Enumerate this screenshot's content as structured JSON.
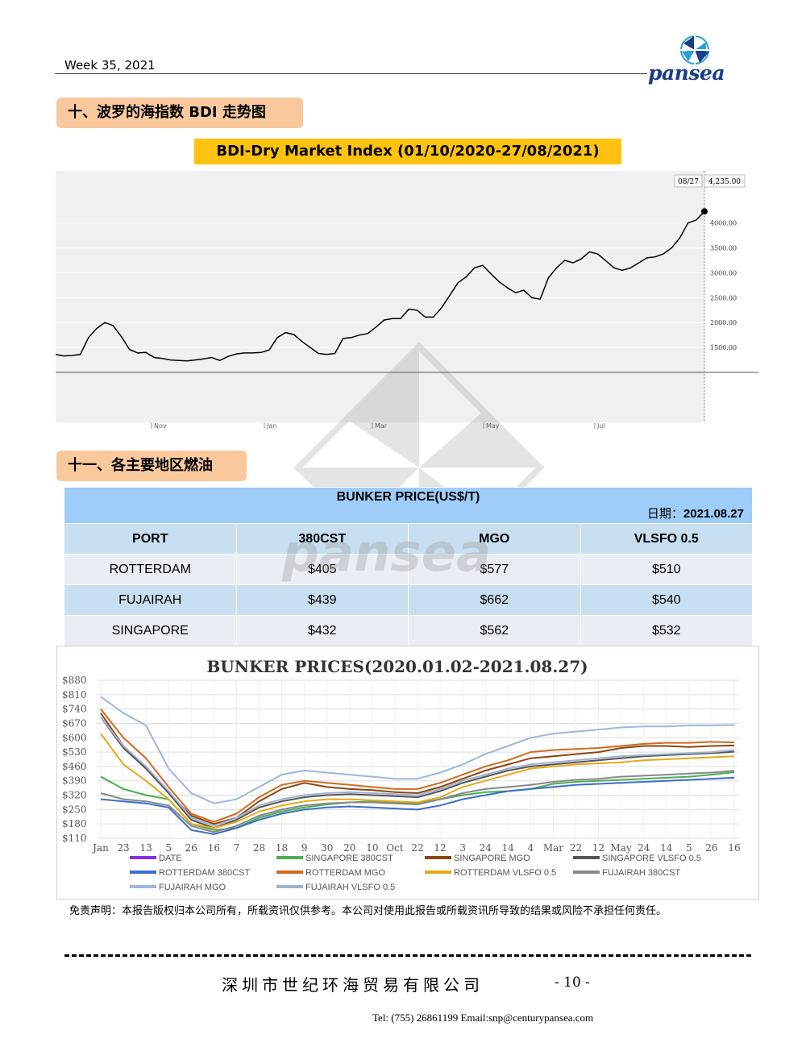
{
  "header": {
    "week": "Week 35, 2021",
    "logo_text": "pansea",
    "logo_colors": {
      "primary": "#1b3e8a",
      "accent": "#2a9fd8"
    }
  },
  "section10": {
    "title": "十、波罗的海指数 BDI 走势图",
    "chart_title": "BDI-Dry Market Index (01/10/2020-27/08/2021)"
  },
  "bdi_chart": {
    "type": "line",
    "tooltip_date": "08/27",
    "tooltip_value": "4,235.00",
    "yticks": [
      "4000.00",
      "3500.00",
      "3000.00",
      "2500.00",
      "2000.00",
      "1500.00"
    ],
    "xticks": [
      "Nov",
      "Jan",
      "Mar",
      "May",
      "Jul"
    ],
    "values": [
      1360,
      1330,
      1340,
      1360,
      1700,
      1880,
      2000,
      1940,
      1720,
      1460,
      1390,
      1400,
      1300,
      1280,
      1250,
      1240,
      1230,
      1250,
      1270,
      1300,
      1240,
      1320,
      1370,
      1390,
      1390,
      1400,
      1450,
      1700,
      1800,
      1760,
      1620,
      1500,
      1380,
      1360,
      1380,
      1680,
      1700,
      1750,
      1780,
      1910,
      2050,
      2080,
      2080,
      2270,
      2250,
      2110,
      2110,
      2300,
      2550,
      2800,
      2920,
      3100,
      3150,
      2980,
      2820,
      2700,
      2600,
      2650,
      2500,
      2470,
      2900,
      3100,
      3250,
      3200,
      3280,
      3420,
      3380,
      3240,
      3100,
      3050,
      3100,
      3200,
      3300,
      3320,
      3380,
      3500,
      3700,
      4000,
      4060,
      4235
    ],
    "ylim": [
      1000,
      4400
    ],
    "line_color": "#000000"
  },
  "section11": {
    "title": "十一、各主要地区燃油"
  },
  "bunker_table": {
    "title": "BUNKER PRICE(US$/T)",
    "date_label": "日期：",
    "date": "2021.08.27",
    "columns": [
      "PORT",
      "380CST",
      "MGO",
      "VLSFO 0.5"
    ],
    "rows": [
      {
        "port": "ROTTERDAM",
        "cst380": "$405",
        "mgo": "$577",
        "vlsfo": "$510"
      },
      {
        "port": "FUJAIRAH",
        "cst380": "$439",
        "mgo": "$662",
        "vlsfo": "$540"
      },
      {
        "port": "SINGAPORE",
        "cst380": "$432",
        "mgo": "$562",
        "vlsfo": "$532"
      }
    ]
  },
  "watermark_text": "pansea",
  "chart_data": {
    "type": "line",
    "title": "BUNKER PRICES(2020.01.02-2021.08.27)",
    "yticks": [
      "$880",
      "$810",
      "$740",
      "$670",
      "$600",
      "$530",
      "$460",
      "$390",
      "$320",
      "$250",
      "$180",
      "$110"
    ],
    "ylim": [
      110,
      880
    ],
    "xticks": [
      "Jan",
      "23",
      "13",
      "5",
      "26",
      "16",
      "7",
      "28",
      "18",
      "9",
      "30",
      "20",
      "10",
      "Oct",
      "22",
      "12",
      "3",
      "24",
      "14",
      "4",
      "Mar",
      "22",
      "12",
      "May",
      "24",
      "14",
      "5",
      "26",
      "16"
    ],
    "legend": [
      "DATE",
      "SINGAPORE 380CST",
      "SINGAPORE MGO",
      "SINGAPORE VLSFO 0.5",
      "ROTTERDAM 380CST",
      "ROTTERDAM MGO",
      "ROTTERDAM VLSFO 0.5",
      "FUJAIRAH  380CST",
      "FUJAIRAH MGO",
      "FUJAIRAH VLSFO 0.5"
    ],
    "series": [
      {
        "name": "SINGAPORE 380CST",
        "color": "#4caf50",
        "values": [
          410,
          350,
          320,
          300,
          180,
          150,
          160,
          210,
          240,
          260,
          275,
          285,
          290,
          285,
          280,
          300,
          320,
          335,
          340,
          350,
          375,
          385,
          390,
          395,
          400,
          405,
          410,
          420,
          432
        ]
      },
      {
        "name": "SINGAPORE MGO",
        "color": "#8b4513",
        "values": [
          720,
          560,
          450,
          330,
          220,
          180,
          210,
          290,
          350,
          380,
          360,
          350,
          345,
          335,
          330,
          360,
          400,
          440,
          470,
          500,
          510,
          520,
          530,
          550,
          560,
          560,
          555,
          560,
          562
        ]
      },
      {
        "name": "SINGAPORE VLSFO 0.5",
        "color": "#555555",
        "values": [
          700,
          550,
          450,
          330,
          200,
          160,
          200,
          260,
          290,
          310,
          320,
          325,
          320,
          315,
          310,
          340,
          380,
          410,
          440,
          460,
          470,
          480,
          490,
          500,
          510,
          515,
          520,
          525,
          532
        ]
      },
      {
        "name": "ROTTERDAM 380CST",
        "color": "#3a6ec8",
        "values": [
          300,
          290,
          280,
          260,
          150,
          130,
          160,
          200,
          230,
          250,
          260,
          265,
          260,
          255,
          250,
          270,
          300,
          320,
          340,
          350,
          360,
          370,
          375,
          380,
          385,
          390,
          395,
          400,
          405
        ]
      },
      {
        "name": "ROTTERDAM MGO",
        "color": "#d2691e",
        "values": [
          740,
          600,
          500,
          360,
          230,
          190,
          230,
          310,
          370,
          390,
          380,
          370,
          360,
          350,
          350,
          380,
          420,
          460,
          490,
          530,
          540,
          545,
          550,
          560,
          570,
          575,
          575,
          580,
          577
        ]
      },
      {
        "name": "ROTTERDAM VLSFO 0.5",
        "color": "#e6a817",
        "values": [
          620,
          470,
          390,
          300,
          180,
          160,
          190,
          240,
          270,
          290,
          300,
          300,
          295,
          290,
          285,
          310,
          360,
          390,
          420,
          450,
          460,
          470,
          475,
          480,
          490,
          495,
          500,
          505,
          510
        ]
      },
      {
        "name": "FUJAIRAH  380CST",
        "color": "#888888",
        "values": [
          330,
          300,
          290,
          270,
          170,
          140,
          170,
          220,
          250,
          270,
          280,
          285,
          285,
          280,
          275,
          300,
          330,
          350,
          360,
          370,
          385,
          395,
          400,
          410,
          415,
          420,
          425,
          430,
          439
        ]
      },
      {
        "name": "FUJAIRAH MGO",
        "color": "#9eb5e0",
        "values": [
          800,
          720,
          660,
          450,
          330,
          280,
          300,
          360,
          420,
          440,
          430,
          420,
          410,
          400,
          400,
          430,
          470,
          520,
          560,
          600,
          620,
          630,
          640,
          650,
          655,
          655,
          660,
          660,
          662
        ]
      },
      {
        "name": "FUJAIRAH VLSFO 0.5",
        "color": "#a0b0d0",
        "values": [
          700,
          560,
          460,
          340,
          210,
          170,
          210,
          270,
          300,
          320,
          330,
          335,
          330,
          325,
          320,
          350,
          390,
          420,
          450,
          470,
          480,
          490,
          500,
          510,
          515,
          520,
          525,
          530,
          540
        ]
      }
    ]
  },
  "footer": {
    "disclaimer": "免责声明：本报告版权归本公司所有，所载资讯仅供参考。本公司对使用此报告或所载资讯所导致的结果或风险不承担任何责任。",
    "company": "深圳市世纪环海贸易有限公司",
    "page": "- 10 -",
    "contact": "Tel: (755) 26861199   Email:snp@centurypansea.com"
  }
}
